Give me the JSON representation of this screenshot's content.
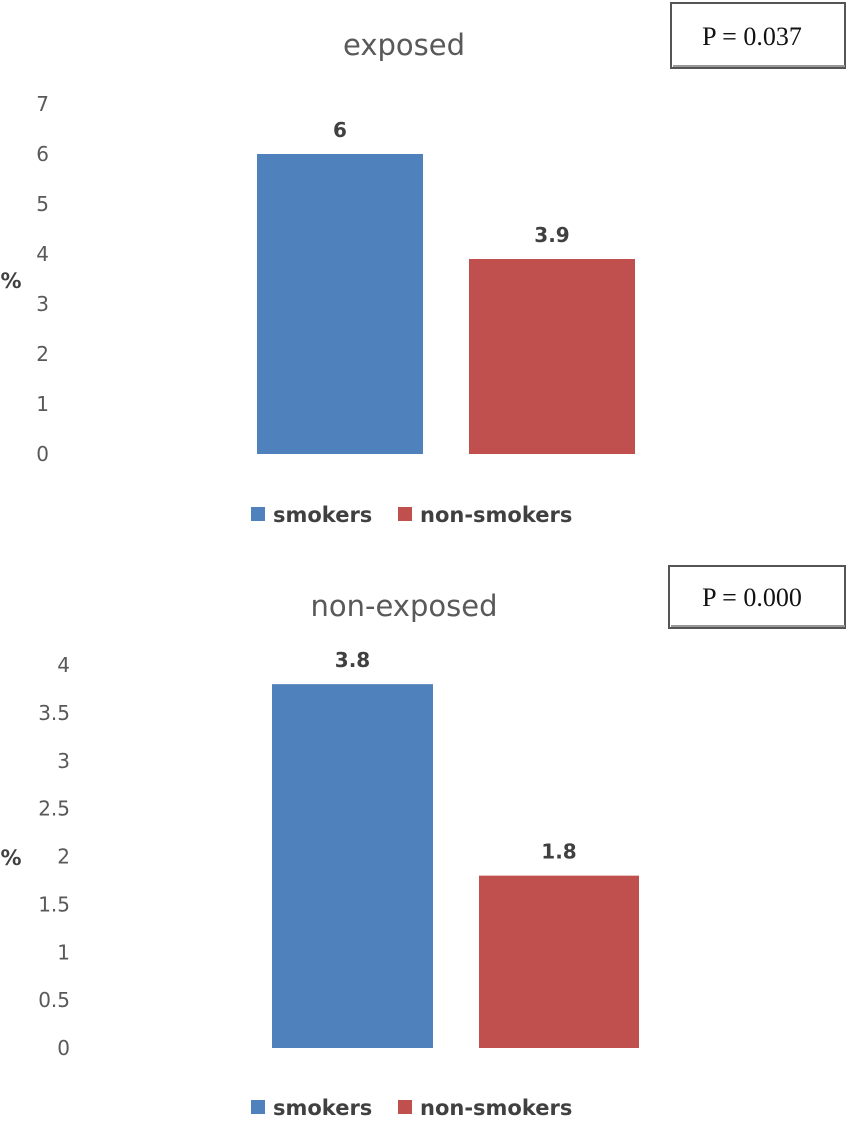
{
  "chart_data": [
    {
      "type": "bar",
      "title": "exposed",
      "categories": [
        "smokers",
        "non-smokers"
      ],
      "values": [
        6,
        3.9
      ],
      "data_labels": [
        "6",
        "3.9"
      ],
      "ylabel": "%",
      "ylim": [
        0,
        7
      ],
      "yticks": [
        "0",
        "1",
        "2",
        "3",
        "4",
        "5",
        "6",
        "7"
      ],
      "ytick_values": [
        0,
        1,
        2,
        3,
        4,
        5,
        6,
        7
      ],
      "colors": [
        "#4f81bd",
        "#c0504d"
      ],
      "legend": [
        "smokers",
        "non-smokers"
      ],
      "legend_position": "bottom",
      "grid": false,
      "annotation": "P = 0.037"
    },
    {
      "type": "bar",
      "title": "non-exposed",
      "categories": [
        "smokers",
        "non-smokers"
      ],
      "values": [
        3.8,
        1.8
      ],
      "data_labels": [
        "3.8",
        "1.8"
      ],
      "ylabel": "%",
      "ylim": [
        0,
        4
      ],
      "yticks": [
        "0",
        "0.5",
        "1",
        "1.5",
        "2",
        "2.5",
        "3",
        "3.5",
        "4"
      ],
      "ytick_values": [
        0,
        0.5,
        1,
        1.5,
        2,
        2.5,
        3,
        3.5,
        4
      ],
      "colors": [
        "#4f81bd",
        "#c0504d"
      ],
      "legend": [
        "smokers",
        "non-smokers"
      ],
      "legend_position": "bottom",
      "grid": false,
      "annotation": "P = 0.000"
    }
  ]
}
